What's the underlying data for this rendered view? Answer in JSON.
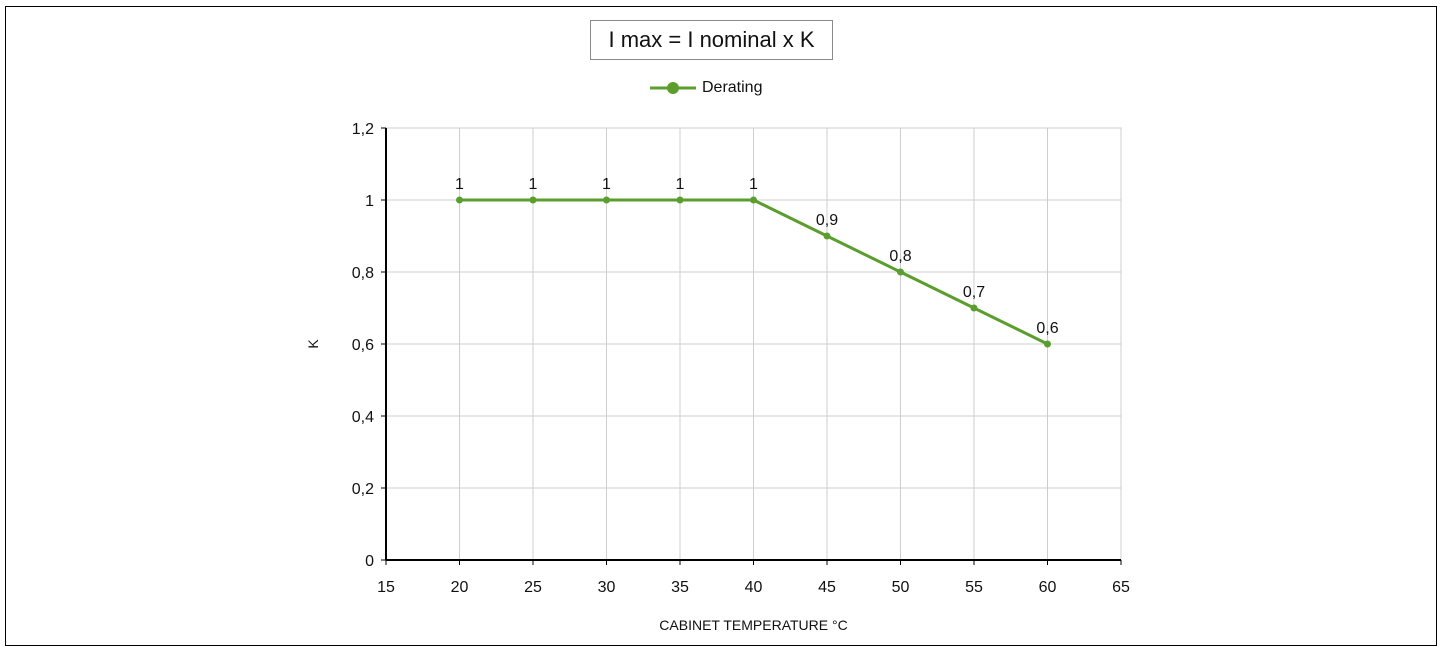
{
  "chart_data": {
    "type": "line",
    "title": "I max = I nominal x K",
    "xlabel": "CABINET TEMPERATURE °C",
    "ylabel": "K",
    "xlim": [
      15,
      65
    ],
    "ylim": [
      0,
      1.2
    ],
    "x_ticks": [
      "15",
      "20",
      "25",
      "30",
      "35",
      "40",
      "45",
      "50",
      "55",
      "60",
      "65"
    ],
    "y_ticks": [
      "0",
      "0,2",
      "0,4",
      "0,6",
      "0,8",
      "1",
      "1,2"
    ],
    "grid": true,
    "legend_position": "top-center",
    "series": [
      {
        "name": "Derating",
        "color": "#5c9e2e",
        "x": [
          20,
          25,
          30,
          35,
          40,
          45,
          50,
          55,
          60
        ],
        "y": [
          1,
          1,
          1,
          1,
          1,
          0.9,
          0.8,
          0.7,
          0.6
        ],
        "labels": [
          "1",
          "1",
          "1",
          "1",
          "1",
          "0,9",
          "0,8",
          "0,7",
          "0,6"
        ]
      }
    ]
  }
}
